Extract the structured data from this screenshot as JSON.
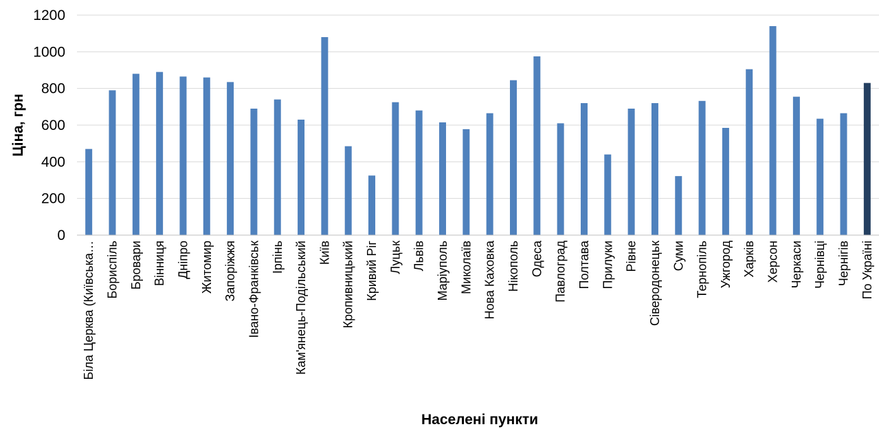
{
  "chart_data": {
    "type": "bar",
    "title": "",
    "xlabel": "Населені пункти",
    "ylabel": "Ціна, грн",
    "ylim": [
      0,
      1200
    ],
    "yticks": [
      0,
      200,
      400,
      600,
      800,
      1000,
      1200
    ],
    "grid": true,
    "legend": "none",
    "colors": {
      "bar": "#4f81bd",
      "highlight": "#243f60",
      "grid": "#d9d9d9",
      "axis": "#bfbfbf"
    },
    "highlight_category": "По Україні",
    "categories": [
      "Біла Церква (Київська…",
      "Бориспіль",
      "Бровари",
      "Вінниця",
      "Дніпро",
      "Житомир",
      "Запоріжжя",
      "Івано-Франківськ",
      "Ірпінь",
      "Кам'янець-Подільський",
      "Київ",
      "Кропивницький",
      "Кривий Ріг",
      "Луцьк",
      "Львів",
      "Маріуполь",
      "Миколаїв",
      "Нова Каховка",
      "Нікополь",
      "Одеса",
      "Павлоград",
      "Полтава",
      "Прилуки",
      "Рівне",
      "Сіверодонецьк",
      "Суми",
      "Тернопіль",
      "Ужгород",
      "Харків",
      "Херсон",
      "Черкаси",
      "Чернівці",
      "Чернігів",
      "По Україні"
    ],
    "values": [
      470,
      790,
      880,
      890,
      865,
      860,
      835,
      690,
      740,
      630,
      1080,
      485,
      325,
      725,
      680,
      615,
      578,
      665,
      845,
      975,
      610,
      720,
      440,
      690,
      720,
      322,
      732,
      585,
      905,
      1140,
      755,
      635,
      665,
      830
    ]
  }
}
